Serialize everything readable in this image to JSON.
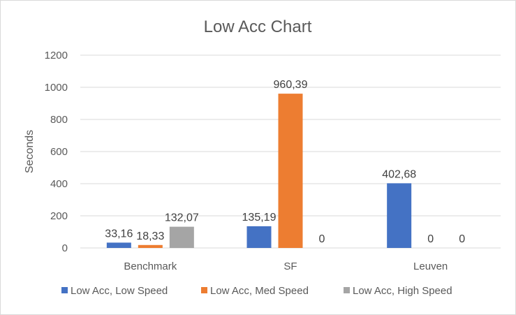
{
  "chart_data": {
    "type": "bar",
    "title": "Low Acc Chart",
    "xlabel": "",
    "ylabel": "Seconds",
    "ylim": [
      0,
      1200
    ],
    "yticks": [
      0,
      200,
      400,
      600,
      800,
      1000,
      1200
    ],
    "grid": true,
    "legend_position": "bottom",
    "categories": [
      "Benchmark",
      "SF",
      "Leuven"
    ],
    "series": [
      {
        "name": "Low Acc, Low Speed",
        "color": "#4472c4",
        "values": [
          33.16,
          135.19,
          402.68
        ],
        "labels": [
          "33,16",
          "135,19",
          "402,68"
        ]
      },
      {
        "name": "Low Acc, Med Speed",
        "color": "#ed7d31",
        "values": [
          18.33,
          960.39,
          0
        ],
        "labels": [
          "18,33",
          "960,39",
          "0"
        ]
      },
      {
        "name": "Low Acc, High Speed",
        "color": "#a5a5a5",
        "values": [
          132.07,
          0,
          0
        ],
        "labels": [
          "132,07",
          "0",
          "0"
        ]
      }
    ]
  }
}
